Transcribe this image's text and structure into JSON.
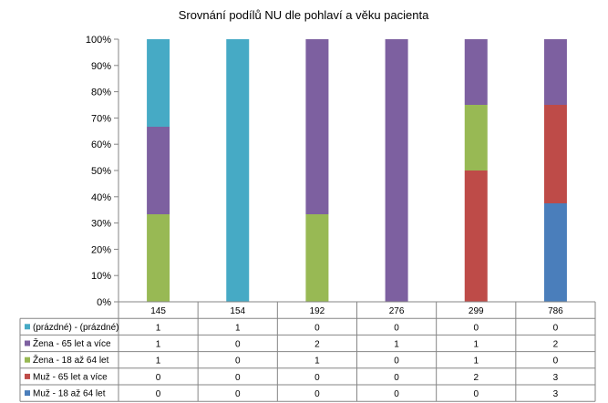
{
  "chart_data": {
    "type": "bar",
    "stacked": "percent",
    "title": "Srovnání podílů NU  dle pohlaví a věku pacienta",
    "xlabel": "",
    "ylabel": "",
    "ylim": [
      0,
      100
    ],
    "y_ticks": [
      "0%",
      "10%",
      "20%",
      "30%",
      "40%",
      "50%",
      "60%",
      "70%",
      "80%",
      "90%",
      "100%"
    ],
    "categories": [
      "145",
      "154",
      "192",
      "276",
      "299",
      "786"
    ],
    "grid": false,
    "legend": "data-table-left",
    "series": [
      {
        "name": "Muž - 18 až 64 let",
        "color": "#4a7ebb",
        "values": [
          0,
          0,
          0,
          0,
          0,
          3
        ]
      },
      {
        "name": "Muž - 65 let a více",
        "color": "#be4b48",
        "values": [
          0,
          0,
          0,
          0,
          2,
          3
        ]
      },
      {
        "name": "Žena - 18 až 64 let",
        "color": "#98b954",
        "values": [
          1,
          0,
          1,
          0,
          1,
          0
        ]
      },
      {
        "name": "Žena - 65 let a více",
        "color": "#7d60a0",
        "values": [
          1,
          0,
          2,
          1,
          1,
          2
        ]
      },
      {
        "name": "(prázdné) - (prázdné)",
        "color": "#46aac5",
        "values": [
          1,
          1,
          0,
          0,
          0,
          0
        ]
      }
    ],
    "table_order": [
      4,
      3,
      2,
      1,
      0
    ]
  }
}
